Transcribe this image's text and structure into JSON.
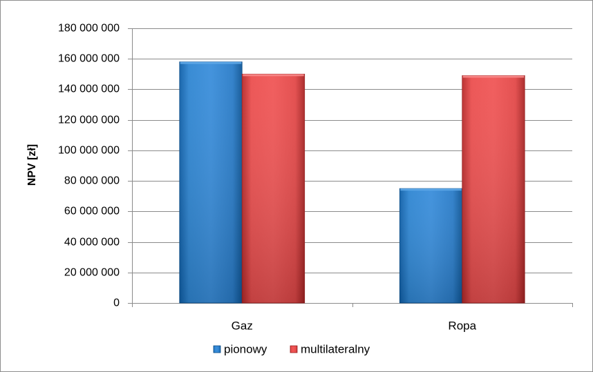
{
  "chart_data": {
    "type": "bar",
    "title": "",
    "xlabel": "",
    "ylabel": "NPV [zł]",
    "categories": [
      "Gaz",
      "Ropa"
    ],
    "series": [
      {
        "name": "pionowy",
        "values": [
          158000000,
          75000000
        ],
        "color": "#1f77c9"
      },
      {
        "name": "multilateralny",
        "values": [
          150000000,
          149000000
        ],
        "color": "#e84343"
      }
    ],
    "ylim": [
      0,
      180000000
    ],
    "yticks": [
      0,
      20000000,
      40000000,
      60000000,
      80000000,
      100000000,
      120000000,
      140000000,
      160000000,
      180000000
    ],
    "ytick_labels": [
      "0",
      "20 000 000",
      "40 000 000",
      "60 000 000",
      "80 000 000",
      "100 000 000",
      "120 000 000",
      "140 000 000",
      "160 000 000",
      "180 000 000"
    ],
    "grid": true,
    "legend_position": "bottom"
  }
}
